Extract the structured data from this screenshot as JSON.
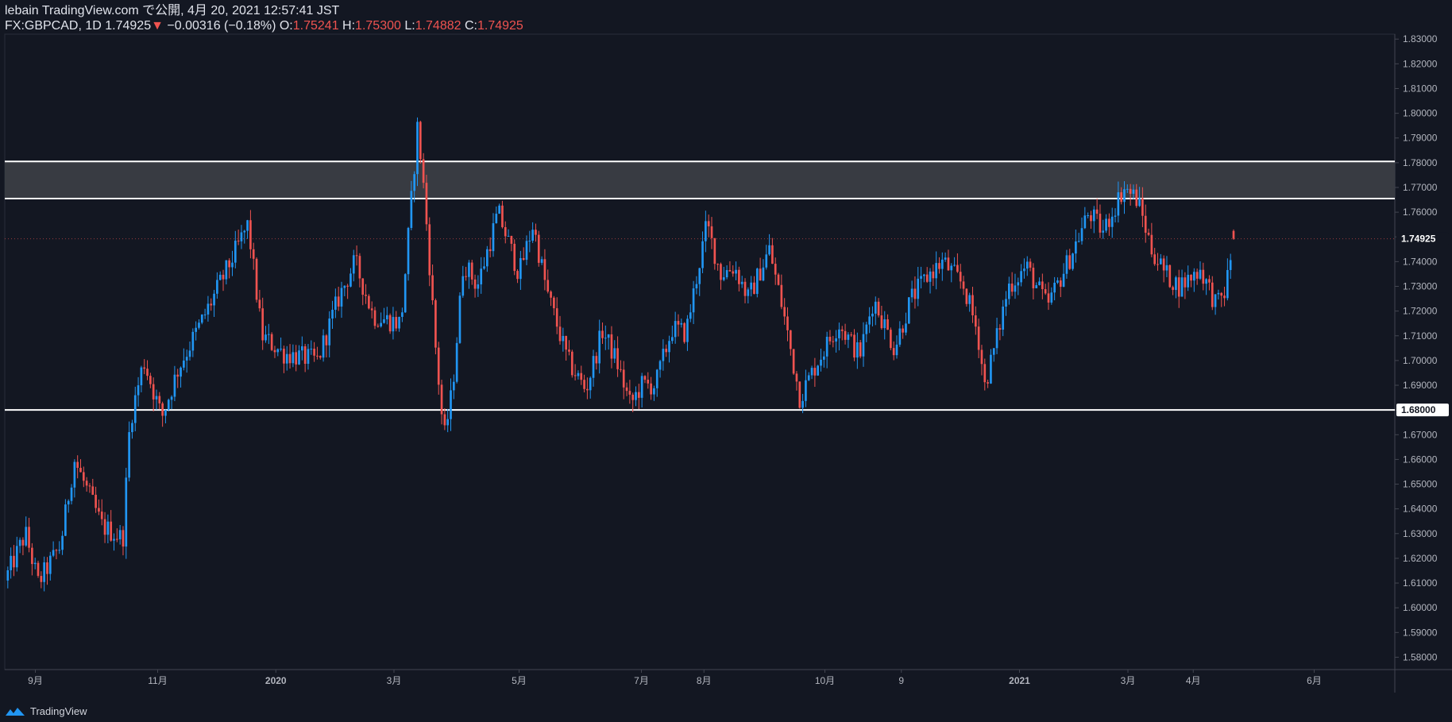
{
  "header": {
    "line1": "lebain TradingView.com で公開, 4月 20, 2021 12:57:41 JST",
    "symbol": "FX:GBPCAD, 1D",
    "last": "1.74925",
    "change_arrow": "▼",
    "change": "−0.00316 (−0.18%)",
    "o_label": "O:",
    "o": "1.75241",
    "h_label": "H:",
    "h": "1.75300",
    "l_label": "L:",
    "l": "1.74882",
    "c_label": "C:",
    "c": "1.74925"
  },
  "footer": {
    "brand": "TradingView"
  },
  "colors": {
    "background": "#131722",
    "up": "#2196f3",
    "down": "#ef5350",
    "zone": "#3a3d45",
    "level_line": "#ffffff",
    "axis_text": "#b2b5be"
  },
  "chart_data": {
    "type": "candlestick",
    "symbol": "FX:GBPCAD",
    "interval": "1D",
    "ylim": [
      1.575,
      1.832
    ],
    "y_ticks": [
      "1.58000",
      "1.59000",
      "1.60000",
      "1.61000",
      "1.62000",
      "1.63000",
      "1.64000",
      "1.65000",
      "1.66000",
      "1.67000",
      "1.68000",
      "1.69000",
      "1.70000",
      "1.71000",
      "1.72000",
      "1.73000",
      "1.74000",
      "1.75000",
      "1.76000",
      "1.77000",
      "1.78000",
      "1.79000",
      "1.80000",
      "1.81000",
      "1.82000",
      "1.83000"
    ],
    "x_ticks": [
      "9月",
      "11月",
      "2020",
      "3月",
      "5月",
      "7月",
      "8月",
      "10月",
      "9",
      "2021",
      "3月",
      "4月",
      "6月"
    ],
    "current_price_label": "1.74925",
    "current_price": 1.74925,
    "level_label": "1.68000",
    "level": 1.68,
    "resistance_zone": [
      1.7655,
      1.7805
    ],
    "last_candle": {
      "o": 1.75241,
      "h": 1.753,
      "l": 1.74882,
      "c": 1.74925
    },
    "close_path": [
      {
        "x": 0.0,
        "y": 1.611
      },
      {
        "x": 0.015,
        "y": 1.63
      },
      {
        "x": 0.024,
        "y": 1.61
      },
      {
        "x": 0.04,
        "y": 1.625
      },
      {
        "x": 0.05,
        "y": 1.66
      },
      {
        "x": 0.07,
        "y": 1.633
      },
      {
        "x": 0.085,
        "y": 1.628
      },
      {
        "x": 0.09,
        "y": 1.675
      },
      {
        "x": 0.1,
        "y": 1.7
      },
      {
        "x": 0.113,
        "y": 1.677
      },
      {
        "x": 0.125,
        "y": 1.697
      },
      {
        "x": 0.14,
        "y": 1.714
      },
      {
        "x": 0.16,
        "y": 1.737
      },
      {
        "x": 0.175,
        "y": 1.755
      },
      {
        "x": 0.185,
        "y": 1.71
      },
      {
        "x": 0.2,
        "y": 1.703
      },
      {
        "x": 0.225,
        "y": 1.7
      },
      {
        "x": 0.24,
        "y": 1.725
      },
      {
        "x": 0.252,
        "y": 1.74
      },
      {
        "x": 0.265,
        "y": 1.718
      },
      {
        "x": 0.285,
        "y": 1.715
      },
      {
        "x": 0.29,
        "y": 1.748
      },
      {
        "x": 0.297,
        "y": 1.795
      },
      {
        "x": 0.302,
        "y": 1.766
      },
      {
        "x": 0.31,
        "y": 1.705
      },
      {
        "x": 0.316,
        "y": 1.668
      },
      {
        "x": 0.322,
        "y": 1.688
      },
      {
        "x": 0.33,
        "y": 1.74
      },
      {
        "x": 0.34,
        "y": 1.73
      },
      {
        "x": 0.355,
        "y": 1.76
      },
      {
        "x": 0.37,
        "y": 1.735
      },
      {
        "x": 0.38,
        "y": 1.755
      },
      {
        "x": 0.39,
        "y": 1.728
      },
      {
        "x": 0.405,
        "y": 1.7
      },
      {
        "x": 0.418,
        "y": 1.688
      },
      {
        "x": 0.43,
        "y": 1.712
      },
      {
        "x": 0.44,
        "y": 1.7
      },
      {
        "x": 0.45,
        "y": 1.682
      },
      {
        "x": 0.458,
        "y": 1.69
      },
      {
        "x": 0.468,
        "y": 1.69
      },
      {
        "x": 0.48,
        "y": 1.713
      },
      {
        "x": 0.49,
        "y": 1.711
      },
      {
        "x": 0.505,
        "y": 1.755
      },
      {
        "x": 0.515,
        "y": 1.735
      },
      {
        "x": 0.525,
        "y": 1.738
      },
      {
        "x": 0.535,
        "y": 1.725
      },
      {
        "x": 0.55,
        "y": 1.745
      },
      {
        "x": 0.56,
        "y": 1.72
      },
      {
        "x": 0.572,
        "y": 1.685
      },
      {
        "x": 0.585,
        "y": 1.7
      },
      {
        "x": 0.6,
        "y": 1.715
      },
      {
        "x": 0.615,
        "y": 1.702
      },
      {
        "x": 0.625,
        "y": 1.725
      },
      {
        "x": 0.64,
        "y": 1.705
      },
      {
        "x": 0.652,
        "y": 1.725
      },
      {
        "x": 0.665,
        "y": 1.735
      },
      {
        "x": 0.675,
        "y": 1.74
      },
      {
        "x": 0.69,
        "y": 1.73
      },
      {
        "x": 0.7,
        "y": 1.711
      },
      {
        "x": 0.705,
        "y": 1.69
      },
      {
        "x": 0.712,
        "y": 1.705
      },
      {
        "x": 0.722,
        "y": 1.73
      },
      {
        "x": 0.735,
        "y": 1.738
      },
      {
        "x": 0.75,
        "y": 1.722
      },
      {
        "x": 0.765,
        "y": 1.74
      },
      {
        "x": 0.78,
        "y": 1.76
      },
      {
        "x": 0.79,
        "y": 1.752
      },
      {
        "x": 0.805,
        "y": 1.77
      },
      {
        "x": 0.815,
        "y": 1.765
      },
      {
        "x": 0.825,
        "y": 1.745
      },
      {
        "x": 0.835,
        "y": 1.735
      },
      {
        "x": 0.845,
        "y": 1.73
      },
      {
        "x": 0.86,
        "y": 1.737
      },
      {
        "x": 0.872,
        "y": 1.722
      },
      {
        "x": 0.878,
        "y": 1.728
      },
      {
        "x": 0.884,
        "y": 1.749
      }
    ]
  }
}
